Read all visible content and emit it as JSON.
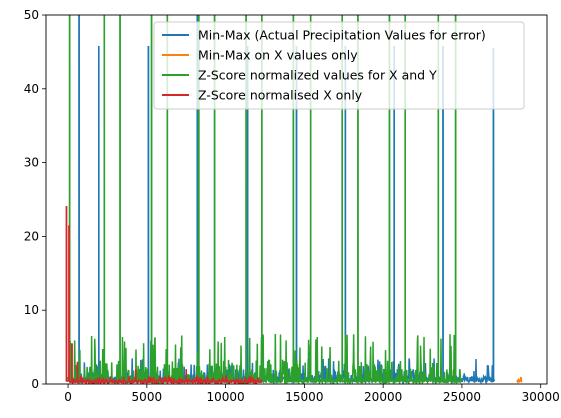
{
  "chart_data": {
    "type": "line",
    "title": "",
    "xlabel": "",
    "ylabel": "",
    "xlim": [
      -1400,
      30400
    ],
    "ylim": [
      0,
      50
    ],
    "x_ticks": [
      0,
      5000,
      10000,
      15000,
      20000,
      25000,
      30000
    ],
    "y_ticks": [
      0,
      10,
      20,
      30,
      40,
      50
    ],
    "grid": false,
    "legend_position": "upper right",
    "series": [
      {
        "name": "Min-Max (Actual Precipitation Values for error)",
        "color": "#1f77b4",
        "x_range": [
          0,
          27100
        ],
        "baseline": 0.8,
        "typical_peak": 3.5,
        "spikes": [
          {
            "x": 700,
            "y": 50
          },
          {
            "x": 1950,
            "y": 45.8
          },
          {
            "x": 5100,
            "y": 45.8
          },
          {
            "x": 8200,
            "y": 50
          },
          {
            "x": 11400,
            "y": 45.8
          },
          {
            "x": 14500,
            "y": 45.8
          },
          {
            "x": 17600,
            "y": 45.8
          },
          {
            "x": 20700,
            "y": 45.8
          },
          {
            "x": 23800,
            "y": 45.8
          },
          {
            "x": 27000,
            "y": 45.5
          }
        ]
      },
      {
        "name": "Min-Max on X values only",
        "color": "#ff7f0e",
        "x_range": [
          28500,
          28800
        ],
        "baseline": 0.5,
        "typical_peak": 1.5,
        "spikes": []
      },
      {
        "name": "Z-Score normalized values for X and Y",
        "color": "#2ca02c",
        "x_range": [
          0,
          25000
        ],
        "baseline": 0.5,
        "typical_peak": 6.8,
        "spikes": [
          {
            "x": 100,
            "y": 50
          },
          {
            "x": 2300,
            "y": 50
          },
          {
            "x": 3300,
            "y": 50
          },
          {
            "x": 5300,
            "y": 50
          },
          {
            "x": 6300,
            "y": 50
          },
          {
            "x": 8300,
            "y": 50
          },
          {
            "x": 9300,
            "y": 50
          },
          {
            "x": 11300,
            "y": 50
          },
          {
            "x": 12300,
            "y": 50
          },
          {
            "x": 14300,
            "y": 50
          },
          {
            "x": 15400,
            "y": 50
          },
          {
            "x": 17400,
            "y": 50
          },
          {
            "x": 18400,
            "y": 50
          },
          {
            "x": 20400,
            "y": 50
          },
          {
            "x": 21400,
            "y": 50
          },
          {
            "x": 23500,
            "y": 50
          },
          {
            "x": 24600,
            "y": 50
          }
        ]
      },
      {
        "name": "Z-Score normalised X only",
        "color": "#d62728",
        "x_range": [
          0,
          12300
        ],
        "baseline": 0.4,
        "typical_peak": 1.2,
        "spikes": [
          {
            "x": -100,
            "y": 24.1
          },
          {
            "x": 60,
            "y": 21.5
          },
          {
            "x": 250,
            "y": 5.5
          },
          {
            "x": 600,
            "y": 3.0
          },
          {
            "x": 4300,
            "y": 2.0
          },
          {
            "x": 7500,
            "y": 2.0
          }
        ]
      }
    ]
  }
}
